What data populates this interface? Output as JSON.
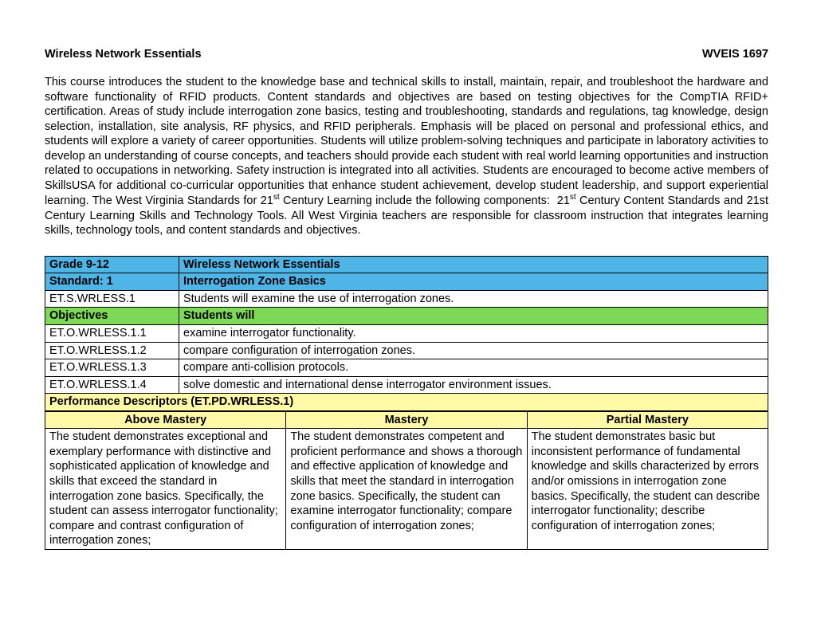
{
  "header": {
    "title": "Wireless Network Essentials",
    "code": "WVEIS 1697"
  },
  "intro_text": "This course introduces the student to the knowledge base and technical skills to install, maintain, repair, and troubleshoot the hardware and software functionality of RFID products. Content standards and objectives are based on testing objectives for the CompTIA RFID+ certification. Areas of study include interrogation zone basics, testing and troubleshooting, standards and regulations, tag knowledge, design selection, installation, site analysis, RF physics, and RFID peripherals. Emphasis will be placed on personal and professional ethics, and students will explore a variety of career opportunities. Students will utilize problem-solving techniques and participate in laboratory activities to develop an understanding of course concepts, and teachers should provide each student with real world learning opportunities and instruction related to occupations in networking. Safety instruction is integrated into all activities. Students are encouraged to become active members of SkillsUSA for additional co-curricular opportunities that enhance student achievement, develop student leadership, and support experiential learning. The West Virginia Standards for 21st Century Learning include the following components:  21st Century Content Standards and 21st Century Learning Skills and Technology Tools. All West Virginia teachers are responsible for classroom instruction that integrates learning skills, technology tools, and content standards and objectives.",
  "colors": {
    "blue": "#4fb4e6",
    "green": "#7ed957",
    "yellow": "#fff9a8"
  },
  "grade_row": {
    "left": "Grade 9-12",
    "right": "Wireless Network Essentials"
  },
  "standard_row": {
    "left": "Standard: 1",
    "right": "Interrogation Zone Basics"
  },
  "standard_code_row": {
    "left": "ET.S.WRLESS.1",
    "right": "Students will examine the use of interrogation zones."
  },
  "objectives_header": {
    "left": "Objectives",
    "right": "Students will"
  },
  "objectives": [
    {
      "code": "ET.O.WRLESS.1.1",
      "text": "examine interrogator functionality."
    },
    {
      "code": "ET.O.WRLESS.1.2",
      "text": "compare configuration of interrogation zones."
    },
    {
      "code": "ET.O.WRLESS.1.3",
      "text": "compare anti-collision protocols."
    },
    {
      "code": "ET.O.WRLESS.1.4",
      "text": "solve domestic and international dense interrogator environment issues."
    }
  ],
  "pd_header": "Performance Descriptors (ET.PD.WRLESS.1)",
  "mastery_labels": {
    "above": "Above Mastery",
    "mastery": "Mastery",
    "partial": "Partial Mastery"
  },
  "mastery_cells": {
    "above": "The student demonstrates exceptional and exemplary performance with distinctive and sophisticated application of knowledge and skills that exceed the standard in interrogation zone basics. Specifically, the student can assess interrogator functionality; compare and contrast configuration of interrogation zones;",
    "mastery": "The student demonstrates competent and proficient performance and shows a thorough and effective application of knowledge and skills that meet the standard in interrogation zone basics. Specifically, the student can examine interrogator functionality; compare configuration of interrogation zones;",
    "partial": "The student demonstrates basic but inconsistent performance of fundamental knowledge and skills characterized by errors and/or omissions in interrogation zone basics. Specifically, the student can describe interrogator functionality; describe configuration of interrogation zones;"
  }
}
